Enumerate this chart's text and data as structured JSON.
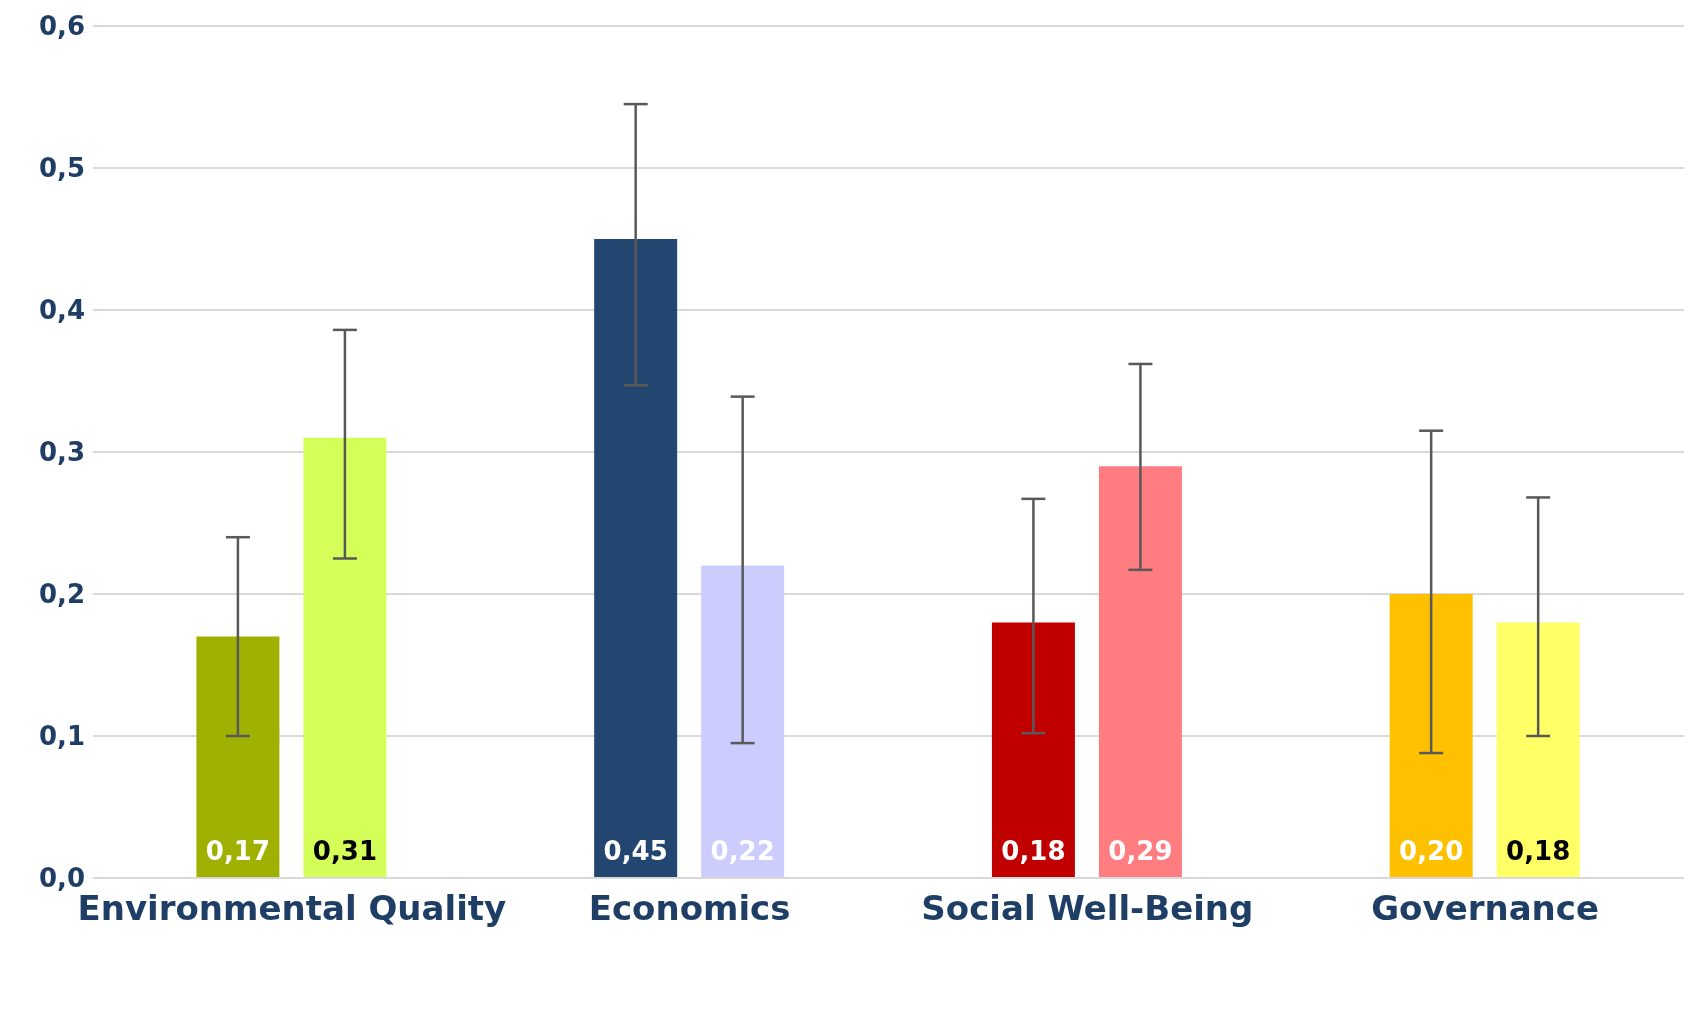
{
  "chart_data": {
    "type": "bar",
    "categories": [
      "Environmental Quality",
      "Economics",
      "Social Well-Being",
      "Governance"
    ],
    "series": [
      {
        "colors": [
          "#a0b000",
          "#22466f",
          "#c00000",
          "#ffc000"
        ],
        "values": [
          0.17,
          0.45,
          0.18,
          0.2
        ],
        "value_labels": [
          "0,17",
          "0,45",
          "0,18",
          "0,20"
        ],
        "errors": [
          [
            0.1,
            0.24
          ],
          [
            0.347,
            0.545
          ],
          [
            0.102,
            0.267
          ],
          [
            0.088,
            0.315
          ]
        ]
      },
      {
        "colors": [
          "#d4ff58",
          "#ccccff",
          "#ff7c80",
          "#ffff66"
        ],
        "values": [
          0.31,
          0.22,
          0.29,
          0.18
        ],
        "value_labels": [
          "0,31",
          "0,22",
          "0,29",
          "0,18"
        ],
        "errors": [
          [
            0.225,
            0.386
          ],
          [
            0.095,
            0.339
          ],
          [
            0.217,
            0.362
          ],
          [
            0.1,
            0.268
          ]
        ]
      }
    ],
    "ylim": [
      0,
      0.6
    ],
    "yticks": [
      {
        "value": 0,
        "label": "0,0"
      },
      {
        "value": 0.1,
        "label": "0,1"
      },
      {
        "value": 0.2,
        "label": "0,2"
      },
      {
        "value": 0.3,
        "label": "0,3"
      },
      {
        "value": 0.4,
        "label": "0,4"
      },
      {
        "value": 0.5,
        "label": "0,5"
      },
      {
        "value": 0.6,
        "label": "0,6"
      }
    ],
    "grid": "y"
  }
}
